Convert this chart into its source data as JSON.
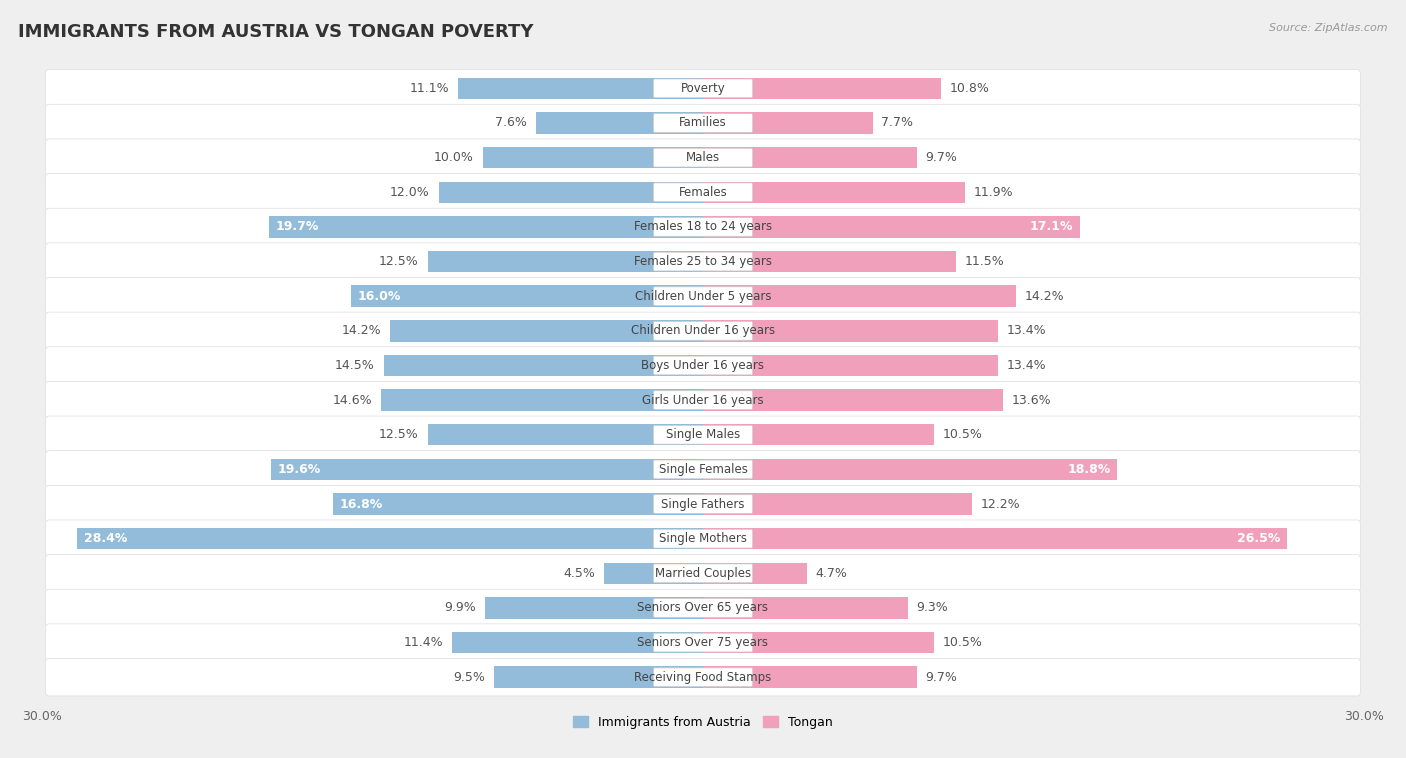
{
  "title": "IMMIGRANTS FROM AUSTRIA VS TONGAN POVERTY",
  "source": "Source: ZipAtlas.com",
  "categories": [
    "Poverty",
    "Families",
    "Males",
    "Females",
    "Females 18 to 24 years",
    "Females 25 to 34 years",
    "Children Under 5 years",
    "Children Under 16 years",
    "Boys Under 16 years",
    "Girls Under 16 years",
    "Single Males",
    "Single Females",
    "Single Fathers",
    "Single Mothers",
    "Married Couples",
    "Seniors Over 65 years",
    "Seniors Over 75 years",
    "Receiving Food Stamps"
  ],
  "left_values": [
    11.1,
    7.6,
    10.0,
    12.0,
    19.7,
    12.5,
    16.0,
    14.2,
    14.5,
    14.6,
    12.5,
    19.6,
    16.8,
    28.4,
    4.5,
    9.9,
    11.4,
    9.5
  ],
  "right_values": [
    10.8,
    7.7,
    9.7,
    11.9,
    17.1,
    11.5,
    14.2,
    13.4,
    13.4,
    13.6,
    10.5,
    18.8,
    12.2,
    26.5,
    4.7,
    9.3,
    10.5,
    9.7
  ],
  "left_color": "#92bcd9",
  "right_color": "#f0a0bb",
  "bar_height": 0.62,
  "xlim": 30.0,
  "bg_color": "#efefef",
  "row_bg_color": "#ffffff",
  "title_fontsize": 13,
  "label_fontsize": 9,
  "category_fontsize": 8.5,
  "value_label_threshold": 16.0
}
